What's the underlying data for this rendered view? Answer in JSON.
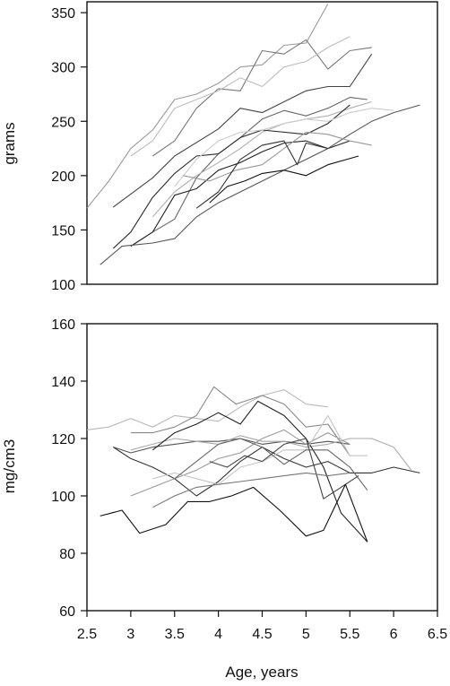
{
  "chart_data": [
    {
      "type": "line",
      "ylabel": "grams",
      "xlabel": "",
      "xlim": [
        2.5,
        6.5
      ],
      "ylim": [
        100,
        360
      ],
      "yticks": [
        "100",
        "150",
        "200",
        "250",
        "300",
        "350"
      ],
      "xticks": [],
      "grid": false,
      "legend": "none",
      "series": [
        {
          "color": "#9a9a9a",
          "x": [
            2.5,
            2.75,
            3.0,
            3.25,
            3.5,
            3.75,
            4.0,
            4.25,
            4.5,
            4.75,
            5.0,
            5.25
          ],
          "y": [
            170,
            195,
            225,
            242,
            270,
            275,
            285,
            300,
            302,
            320,
            322,
            358
          ]
        },
        {
          "color": "#777777",
          "x": [
            3.25,
            3.5,
            3.75,
            4.0,
            4.25,
            4.5,
            4.75,
            5.0,
            5.25,
            5.5,
            5.75
          ],
          "y": [
            218,
            232,
            262,
            280,
            278,
            315,
            312,
            325,
            298,
            315,
            318
          ]
        },
        {
          "color": "#bdbdbd",
          "x": [
            3.0,
            3.25,
            3.5,
            3.75,
            4.0,
            4.25,
            4.5,
            4.75,
            5.0,
            5.25,
            5.5
          ],
          "y": [
            218,
            232,
            262,
            270,
            278,
            290,
            282,
            300,
            305,
            318,
            328
          ]
        },
        {
          "color": "#444444",
          "x": [
            2.8,
            3.25,
            3.5,
            4.0,
            4.25,
            4.5,
            5.0,
            5.25,
            5.5,
            5.75
          ],
          "y": [
            171,
            198,
            218,
            243,
            262,
            258,
            278,
            282,
            282,
            312
          ]
        },
        {
          "color": "#666666",
          "x": [
            3.0,
            3.25,
            3.5,
            3.75,
            4.0,
            4.25,
            4.5,
            4.75,
            5.0,
            5.25,
            5.5,
            5.7
          ],
          "y": [
            135,
            148,
            160,
            198,
            220,
            235,
            252,
            260,
            255,
            262,
            272,
            270
          ]
        },
        {
          "color": "#b0b0b0",
          "x": [
            3.25,
            3.5,
            3.75,
            4.0,
            4.25,
            4.5,
            4.75,
            5.0,
            5.25,
            5.5,
            5.75
          ],
          "y": [
            162,
            185,
            200,
            212,
            225,
            240,
            248,
            252,
            255,
            262,
            268
          ]
        },
        {
          "color": "#2a2a2a",
          "x": [
            2.8,
            3.0,
            3.25,
            3.5,
            3.75,
            4.0,
            4.25,
            4.5,
            5.0,
            5.25,
            5.5
          ],
          "y": [
            133,
            148,
            180,
            202,
            218,
            220,
            235,
            242,
            238,
            248,
            265
          ]
        },
        {
          "color": "#cccccc",
          "x": [
            3.5,
            3.75,
            4.0,
            4.25,
            4.5,
            4.75,
            5.0,
            5.25,
            5.5,
            5.75,
            6.0
          ],
          "y": [
            190,
            215,
            232,
            240,
            242,
            248,
            252,
            250,
            258,
            262,
            260
          ]
        },
        {
          "color": "#222222",
          "x": [
            3.0,
            3.25,
            3.5,
            3.75,
            4.0,
            4.25,
            4.5,
            4.75,
            5.0,
            5.25,
            5.5
          ],
          "y": [
            135,
            148,
            182,
            188,
            205,
            212,
            222,
            230,
            232,
            225,
            232
          ]
        },
        {
          "color": "#555555",
          "x": [
            2.65,
            2.9,
            3.25,
            3.5,
            3.75,
            4.0,
            4.25,
            4.5,
            4.75,
            5.0,
            5.25,
            5.5,
            5.75,
            6.0,
            6.3
          ],
          "y": [
            118,
            135,
            138,
            142,
            162,
            175,
            185,
            195,
            205,
            215,
            225,
            238,
            250,
            258,
            265
          ]
        },
        {
          "color": "#999999",
          "x": [
            3.6,
            3.9,
            4.2,
            4.5,
            4.75,
            5.0,
            5.25,
            5.5,
            5.75
          ],
          "y": [
            200,
            195,
            205,
            210,
            225,
            240,
            238,
            232,
            228
          ]
        },
        {
          "color": "#333333",
          "x": [
            3.75,
            4.0,
            4.25,
            4.5,
            4.75,
            4.9,
            5.0,
            5.25
          ],
          "y": [
            170,
            185,
            215,
            228,
            232,
            210,
            230,
            225
          ]
        },
        {
          "color": "#111111",
          "x": [
            3.9,
            4.1,
            4.3,
            4.5,
            4.75,
            5.0,
            5.25,
            5.6
          ],
          "y": [
            175,
            190,
            195,
            202,
            205,
            200,
            210,
            218
          ]
        }
      ]
    },
    {
      "type": "line",
      "ylabel": "mg/cm3",
      "xlabel": "Age, years",
      "xlim": [
        2.5,
        6.5
      ],
      "ylim": [
        60,
        160
      ],
      "yticks": [
        "60",
        "80",
        "100",
        "120",
        "140",
        "160"
      ],
      "xticks": [
        "2.5",
        "3",
        "3.5",
        "4",
        "4.5",
        "5",
        "5.5",
        "6",
        "6.5"
      ],
      "grid": false,
      "legend": "none",
      "series": [
        {
          "color": "#b8b8b8",
          "x": [
            2.5,
            2.75,
            3.0,
            3.25,
            3.5,
            3.75,
            4.0,
            4.25,
            4.5,
            4.75,
            5.0,
            5.25
          ],
          "y": [
            123,
            124,
            127,
            124,
            128,
            127,
            126,
            131,
            135,
            137,
            132,
            131
          ]
        },
        {
          "color": "#888888",
          "x": [
            3.0,
            3.25,
            3.5,
            3.75,
            3.95,
            4.2,
            4.5,
            4.75,
            5.0,
            5.25,
            5.5
          ],
          "y": [
            122,
            122,
            124,
            128,
            138,
            132,
            135,
            132,
            124,
            125,
            114
          ]
        },
        {
          "color": "#555555",
          "x": [
            2.8,
            3.0,
            3.25,
            3.5,
            3.75,
            4.0,
            4.25,
            4.5,
            4.75,
            5.0,
            5.25,
            5.5
          ],
          "y": [
            117,
            115,
            117,
            118,
            119,
            119,
            120,
            118,
            119,
            118,
            119,
            118
          ]
        },
        {
          "color": "#aaaaaa",
          "x": [
            3.0,
            3.25,
            3.5,
            3.75,
            4.0,
            4.25,
            4.5,
            4.75,
            5.0,
            5.25,
            5.5,
            5.75,
            6.0,
            6.2
          ],
          "y": [
            116,
            118,
            120,
            119,
            118,
            121,
            119,
            119,
            117,
            118,
            120,
            120,
            117,
            109
          ]
        },
        {
          "color": "#222222",
          "x": [
            3.25,
            3.5,
            3.75,
            4.0,
            4.25,
            4.45,
            4.75,
            5.0,
            5.2,
            5.4,
            5.7
          ],
          "y": [
            116,
            122,
            125,
            129,
            125,
            133,
            128,
            120,
            110,
            94,
            84
          ]
        },
        {
          "color": "#333333",
          "x": [
            2.8,
            3.0,
            3.25,
            3.5,
            3.75,
            4.0,
            4.25,
            4.5,
            4.75,
            5.0,
            5.25,
            5.5,
            5.75,
            6.0,
            6.3
          ],
          "y": [
            117,
            113,
            110,
            106,
            100,
            105,
            112,
            117,
            113,
            110,
            112,
            108,
            108,
            110,
            108
          ]
        },
        {
          "color": "#999999",
          "x": [
            3.0,
            3.25,
            3.5,
            3.75,
            4.0,
            4.25,
            4.5,
            4.75,
            5.0,
            5.25,
            5.5
          ],
          "y": [
            100,
            103,
            106,
            109,
            113,
            115,
            120,
            123,
            118,
            122,
            118
          ]
        },
        {
          "color": "#c4c4c4",
          "x": [
            3.25,
            3.5,
            3.75,
            4.0,
            4.25,
            4.5,
            4.75,
            5.0,
            5.25,
            5.5,
            5.7
          ],
          "y": [
            106,
            108,
            106,
            104,
            110,
            112,
            116,
            116,
            128,
            114,
            114
          ]
        },
        {
          "color": "#666666",
          "x": [
            3.5,
            3.75,
            4.0,
            4.25,
            4.5,
            4.75,
            5.0,
            5.25,
            5.5,
            5.7
          ],
          "y": [
            106,
            112,
            118,
            120,
            117,
            111,
            116,
            116,
            110,
            102
          ]
        },
        {
          "color": "#444444",
          "x": [
            3.9,
            4.1,
            4.3,
            4.5,
            4.75,
            5.0,
            5.2,
            5.4,
            5.6
          ],
          "y": [
            112,
            110,
            114,
            112,
            118,
            120,
            99,
            103,
            107
          ]
        },
        {
          "color": "#111111",
          "x": [
            2.65,
            2.9,
            3.1,
            3.4,
            3.65,
            3.9,
            4.15,
            4.4,
            4.7,
            5.0,
            5.2,
            5.45,
            5.7
          ],
          "y": [
            93,
            95,
            87,
            90,
            98,
            98,
            100,
            103,
            95,
            86,
            88,
            104,
            84
          ]
        },
        {
          "color": "#777777",
          "x": [
            3.25,
            3.5,
            3.75,
            4.0,
            4.25,
            4.5,
            4.75,
            5.0,
            5.25,
            5.5
          ],
          "y": [
            96,
            100,
            103,
            104,
            105,
            106,
            107,
            108,
            107,
            108
          ]
        }
      ]
    }
  ]
}
